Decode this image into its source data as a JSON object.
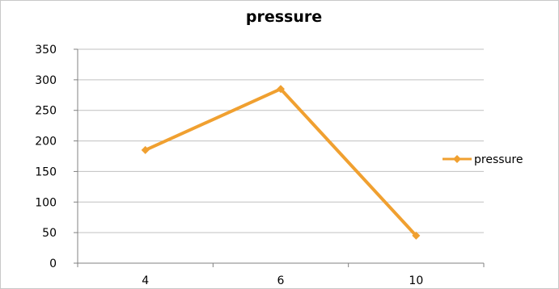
{
  "chart_data": {
    "type": "line",
    "title": "pressure",
    "xlabel": "",
    "ylabel": "",
    "categories": [
      "4",
      "6",
      "10"
    ],
    "series": [
      {
        "name": "pressure",
        "values": [
          185,
          285,
          45
        ]
      }
    ],
    "ylim": [
      0,
      350
    ],
    "yticks": [
      0,
      50,
      100,
      150,
      200,
      250,
      300,
      350
    ],
    "grid": true,
    "legend": "right",
    "colors": {
      "series": "#F0A030",
      "grid": "#c0c0c0",
      "axis": "#808080"
    }
  }
}
